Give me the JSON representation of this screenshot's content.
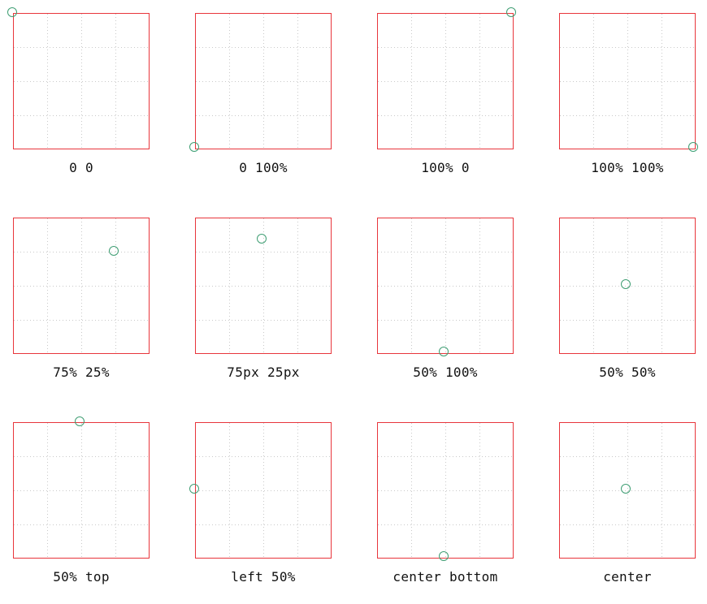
{
  "colors": {
    "box_border": "#e8353b",
    "marker": "#3f9e73",
    "grid": "#c9c9c9",
    "text": "#111111",
    "background": "#ffffff"
  },
  "panels": [
    {
      "label": "0 0"
    },
    {
      "label": "0 100%"
    },
    {
      "label": "100% 0"
    },
    {
      "label": "100% 100%"
    },
    {
      "label": "75% 25%"
    },
    {
      "label": "75px 25px"
    },
    {
      "label": "50% 100%"
    },
    {
      "label": "50% 50%"
    },
    {
      "label": "50% top"
    },
    {
      "label": "left 50%"
    },
    {
      "label": "center bottom"
    },
    {
      "label": "center"
    }
  ]
}
